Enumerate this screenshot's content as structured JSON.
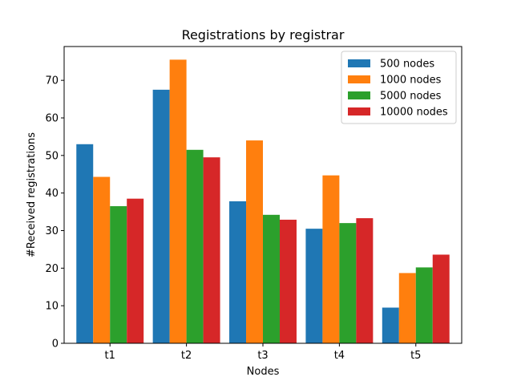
{
  "chart_data": {
    "type": "bar",
    "title": "Registrations by registrar",
    "xlabel": "Nodes",
    "ylabel": "#Received registrations",
    "categories": [
      "t1",
      "t2",
      "t3",
      "t4",
      "t5"
    ],
    "series": [
      {
        "name": "500 nodes",
        "color": "#1f77b4",
        "values": [
          53.0,
          67.5,
          37.8,
          30.5,
          9.5
        ]
      },
      {
        "name": "1000 nodes",
        "color": "#ff7f0e",
        "values": [
          44.3,
          75.5,
          54.0,
          44.7,
          18.7
        ]
      },
      {
        "name": "5000 nodes",
        "color": "#2ca02c",
        "values": [
          36.5,
          51.5,
          34.2,
          32.0,
          20.2
        ]
      },
      {
        "name": "10000 nodes",
        "color": "#d62728",
        "values": [
          38.5,
          49.5,
          32.9,
          33.3,
          23.6
        ]
      }
    ],
    "ylim": [
      0,
      79
    ],
    "yticks": [
      0,
      10,
      20,
      30,
      40,
      50,
      60,
      70
    ],
    "grid": false,
    "legend_position": "top-right"
  }
}
